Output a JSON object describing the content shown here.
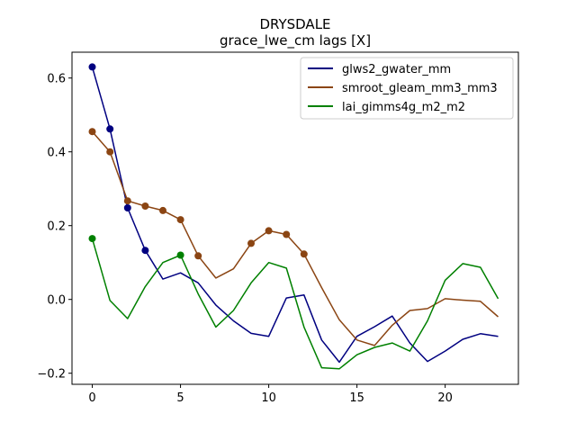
{
  "chart_data": {
    "type": "line",
    "title": "DRYSDALE",
    "subtitle": "grace_lwe_cm lags [X]",
    "xlabel": "",
    "ylabel": "",
    "xlim": [
      -1.15,
      24.15
    ],
    "ylim": [
      -0.23,
      0.67
    ],
    "xticks": [
      0,
      5,
      10,
      15,
      20
    ],
    "yticks": [
      -0.2,
      0.0,
      0.2,
      0.4,
      0.6
    ],
    "ytick_labels": [
      "−0.2",
      "0.0",
      "0.2",
      "0.4",
      "0.6"
    ],
    "legend_position": "top-right",
    "series": [
      {
        "name": "glws2_gwater_mm",
        "color": "#000080",
        "x": [
          0,
          1,
          2,
          3,
          4,
          5,
          6,
          7,
          8,
          9,
          10,
          11,
          12,
          13,
          14,
          15,
          16,
          17,
          18,
          19,
          20,
          21,
          22,
          23
        ],
        "values": [
          0.63,
          0.462,
          0.248,
          0.133,
          0.055,
          0.072,
          0.045,
          -0.015,
          -0.058,
          -0.092,
          -0.1,
          0.004,
          0.012,
          -0.11,
          -0.17,
          -0.1,
          -0.074,
          -0.045,
          -0.118,
          -0.168,
          -0.14,
          -0.108,
          -0.093,
          -0.1
        ],
        "markers": [
          0,
          1,
          2,
          3
        ]
      },
      {
        "name": "smroot_gleam_mm3_mm3",
        "color": "#8b4513",
        "x": [
          0,
          1,
          2,
          3,
          4,
          5,
          6,
          7,
          8,
          9,
          10,
          11,
          12,
          13,
          14,
          15,
          16,
          17,
          18,
          19,
          20,
          21,
          22,
          23
        ],
        "values": [
          0.455,
          0.4,
          0.267,
          0.253,
          0.241,
          0.216,
          0.118,
          0.058,
          0.083,
          0.152,
          0.186,
          0.176,
          0.123,
          0.032,
          -0.055,
          -0.11,
          -0.125,
          -0.07,
          -0.03,
          -0.025,
          0.002,
          -0.002,
          -0.005,
          -0.047
        ],
        "markers": [
          0,
          1,
          2,
          3,
          4,
          5,
          6,
          9,
          10,
          11,
          12
        ]
      },
      {
        "name": "lai_gimms4g_m2_m2",
        "color": "#008000",
        "x": [
          0,
          1,
          2,
          3,
          4,
          5,
          6,
          7,
          8,
          9,
          10,
          11,
          12,
          13,
          14,
          15,
          16,
          17,
          18,
          19,
          20,
          21,
          22,
          23
        ],
        "values": [
          0.165,
          -0.003,
          -0.052,
          0.035,
          0.1,
          0.12,
          0.015,
          -0.075,
          -0.03,
          0.045,
          0.1,
          0.085,
          -0.075,
          -0.185,
          -0.188,
          -0.15,
          -0.13,
          -0.118,
          -0.14,
          -0.058,
          0.052,
          0.097,
          0.087,
          0.002
        ],
        "markers": [
          0,
          5
        ]
      }
    ]
  }
}
